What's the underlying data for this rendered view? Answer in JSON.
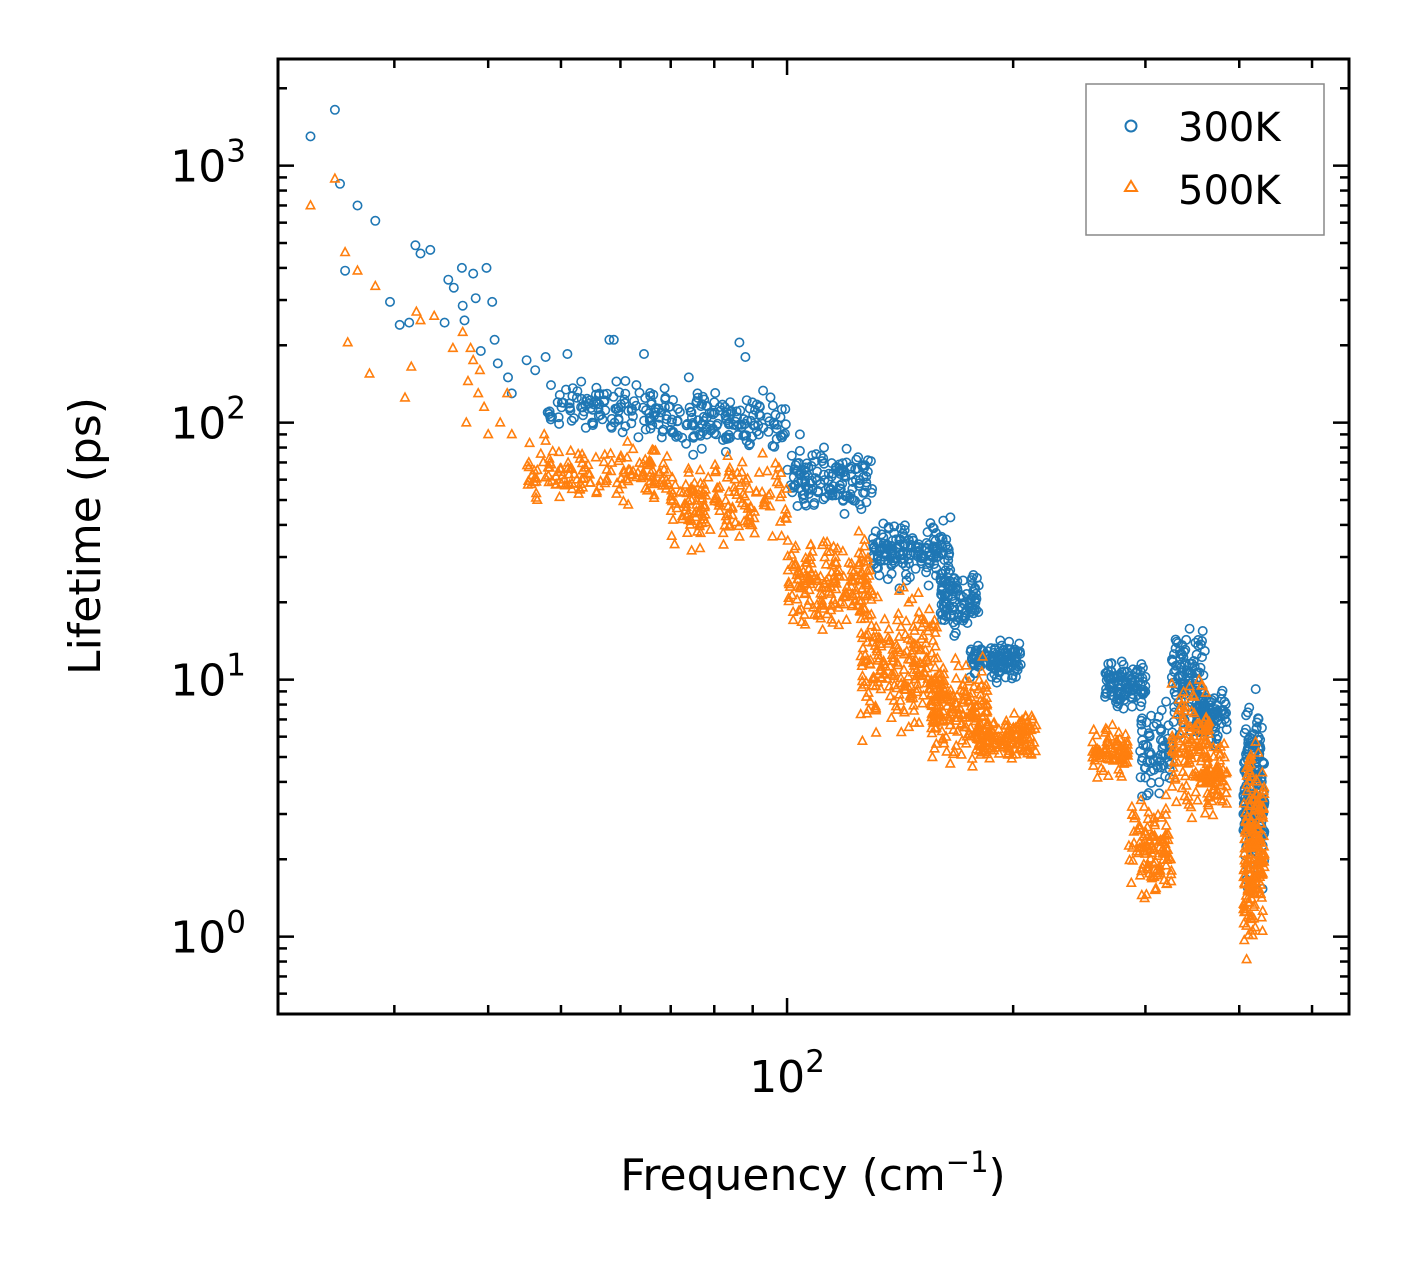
{
  "chart_data": {
    "type": "scatter",
    "xscale": "log",
    "yscale": "log",
    "xlim": [
      21,
      560
    ],
    "ylim": [
      0.5,
      2600
    ],
    "xlabel": "Frequency (cm⁻¹)",
    "xlabel_main": "Frequency (cm",
    "xlabel_sup": "−1",
    "xlabel_close": ")",
    "ylabel": "Lifetime (ps)",
    "x_major_ticks": [
      {
        "value": 100,
        "base": "10",
        "exp": "2"
      }
    ],
    "y_major_ticks": [
      {
        "value": 1,
        "base": "10",
        "exp": "0"
      },
      {
        "value": 10,
        "base": "10",
        "exp": "1"
      },
      {
        "value": 100,
        "base": "10",
        "exp": "2"
      },
      {
        "value": 1000,
        "base": "10",
        "exp": "3"
      }
    ],
    "legend_position": "top-right",
    "series": [
      {
        "name": "300K",
        "marker": "circle",
        "color": "#1f77b4",
        "points": [
          [
            23.2,
            1300
          ],
          [
            25.0,
            1650
          ],
          [
            25.4,
            850
          ],
          [
            26.8,
            700
          ],
          [
            28.3,
            610
          ],
          [
            25.8,
            390
          ],
          [
            32.0,
            490
          ],
          [
            32.5,
            455
          ],
          [
            33.5,
            470
          ],
          [
            35.4,
            360
          ],
          [
            36.0,
            335
          ],
          [
            36.9,
            400
          ],
          [
            37.0,
            285
          ],
          [
            37.2,
            250
          ],
          [
            38.5,
            305
          ],
          [
            38.2,
            380
          ],
          [
            39.8,
            400
          ],
          [
            40.5,
            295
          ],
          [
            35.0,
            245
          ],
          [
            30.5,
            240
          ],
          [
            29.6,
            295
          ],
          [
            31.4,
            245
          ],
          [
            39.1,
            190
          ],
          [
            40.8,
            210
          ],
          [
            41.2,
            170
          ],
          [
            42.5,
            150
          ],
          [
            43.0,
            130
          ],
          [
            45.0,
            175
          ],
          [
            46.2,
            160
          ],
          [
            47.7,
            180
          ],
          [
            48.5,
            140
          ],
          [
            49.5,
            120
          ],
          [
            51.0,
            185
          ],
          [
            52.5,
            125
          ],
          [
            55.0,
            100
          ],
          [
            58.0,
            210
          ],
          [
            58.8,
            210
          ],
          [
            63.0,
            140
          ],
          [
            64.5,
            185
          ],
          [
            66.0,
            120
          ],
          [
            72.0,
            110
          ],
          [
            74.0,
            150
          ],
          [
            76.0,
            130
          ],
          [
            80.0,
            120
          ],
          [
            84.0,
            110
          ],
          [
            86.4,
            205
          ],
          [
            88.0,
            180
          ],
          [
            92.0,
            115
          ],
          [
            96.0,
            100
          ],
          [
            98.0,
            105
          ],
          [
            104.0,
            90
          ],
          [
            112.0,
            80
          ],
          [
            120.0,
            70
          ]
        ],
        "clusters": [
          {
            "x": [
              48,
              70
            ],
            "y": [
              80,
              160
            ],
            "n": 120
          },
          {
            "x": [
              70,
              100
            ],
            "y": [
              70,
              140
            ],
            "n": 140
          },
          {
            "x": [
              100,
              130
            ],
            "y": [
              40,
              90
            ],
            "n": 140
          },
          {
            "x": [
              130,
              165
            ],
            "y": [
              22,
              45
            ],
            "n": 170
          },
          {
            "x": [
              160,
              180
            ],
            "y": [
              14,
              30
            ],
            "n": 110
          },
          {
            "x": [
              175,
              205
            ],
            "y": [
              9.5,
              15
            ],
            "n": 120
          },
          {
            "x": [
              265,
              300
            ],
            "y": [
              7,
              13
            ],
            "n": 110
          },
          {
            "x": [
              295,
              325
            ],
            "y": [
              3,
              9
            ],
            "n": 70
          },
          {
            "x": [
              325,
              360
            ],
            "y": [
              5,
              19
            ],
            "n": 120
          },
          {
            "x": [
              350,
              385
            ],
            "y": [
              5,
              10
            ],
            "n": 90
          },
          {
            "x": [
              405,
              432
            ],
            "y": [
              1.3,
              11
            ],
            "n": 190
          }
        ]
      },
      {
        "name": "500K",
        "marker": "triangle",
        "color": "#ff7f0e",
        "points": [
          [
            23.2,
            700
          ],
          [
            25.0,
            890
          ],
          [
            25.8,
            460
          ],
          [
            26.8,
            390
          ],
          [
            26.0,
            205
          ],
          [
            28.3,
            340
          ],
          [
            27.8,
            155
          ],
          [
            31.0,
            125
          ],
          [
            31.6,
            165
          ],
          [
            32.1,
            270
          ],
          [
            32.5,
            250
          ],
          [
            33.9,
            260
          ],
          [
            35.9,
            195
          ],
          [
            37.0,
            225
          ],
          [
            37.9,
            195
          ],
          [
            38.2,
            175
          ],
          [
            39.0,
            160
          ],
          [
            37.6,
            145
          ],
          [
            38.8,
            130
          ],
          [
            39.5,
            115
          ],
          [
            37.4,
            100
          ],
          [
            40.0,
            90
          ],
          [
            41.5,
            100
          ],
          [
            42.4,
            130
          ],
          [
            43.0,
            90
          ],
          [
            45.3,
            70
          ],
          [
            46.5,
            50
          ],
          [
            47.5,
            90
          ],
          [
            50.5,
            60
          ],
          [
            53.0,
            55
          ]
        ],
        "clusters": [
          {
            "x": [
              45,
              70
            ],
            "y": [
              45,
              90
            ],
            "n": 150
          },
          {
            "x": [
              70,
              100
            ],
            "y": [
              30,
              80
            ],
            "n": 170
          },
          {
            "x": [
              100,
              130
            ],
            "y": [
              14,
              40
            ],
            "n": 190
          },
          {
            "x": [
              125,
              160
            ],
            "y": [
              5,
              25
            ],
            "n": 230
          },
          {
            "x": [
              155,
              185
            ],
            "y": [
              4,
              14
            ],
            "n": 170
          },
          {
            "x": [
              180,
              215
            ],
            "y": [
              4.5,
              8
            ],
            "n": 140
          },
          {
            "x": [
              255,
              285
            ],
            "y": [
              4,
              7
            ],
            "n": 80
          },
          {
            "x": [
              285,
              325
            ],
            "y": [
              1.2,
              4
            ],
            "n": 120
          },
          {
            "x": [
              325,
              365
            ],
            "y": [
              2.5,
              12
            ],
            "n": 140
          },
          {
            "x": [
              360,
              385
            ],
            "y": [
              2.8,
              6
            ],
            "n": 70
          },
          {
            "x": [
              405,
              432
            ],
            "y": [
              0.72,
              7
            ],
            "n": 210
          }
        ]
      }
    ]
  }
}
